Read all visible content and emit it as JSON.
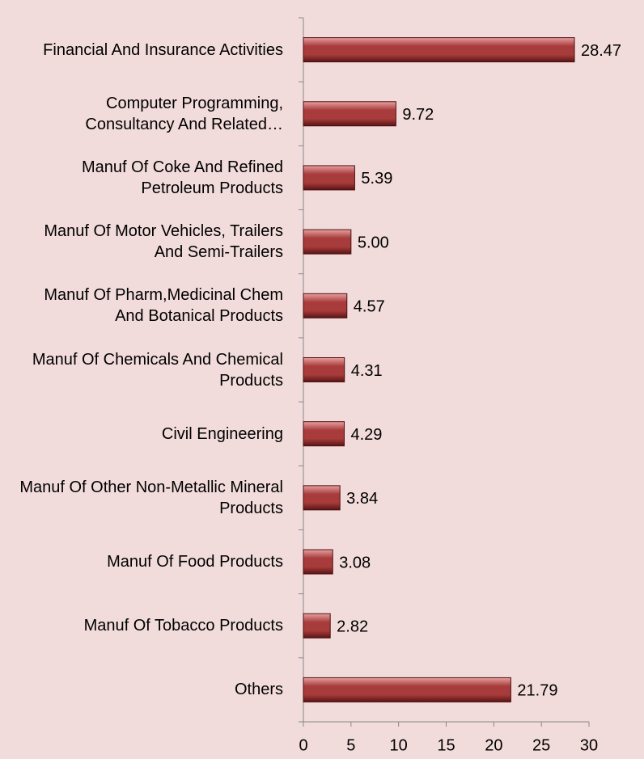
{
  "chart_data": {
    "type": "bar",
    "orientation": "horizontal",
    "categories": [
      "Financial And Insurance Activities",
      "Computer Programming, Consultancy And Related…",
      "Manuf Of Coke And Refined Petroleum Products",
      "Manuf Of Motor Vehicles, Trailers And Semi-Trailers",
      "Manuf Of Pharm,Medicinal Chem And Botanical Products",
      "Manuf Of Chemicals And Chemical Products",
      "Civil Engineering",
      "Manuf Of Other Non-Metallic Mineral Products",
      "Manuf Of Food Products",
      "Manuf Of Tobacco Products",
      "Others"
    ],
    "values": [
      28.47,
      9.72,
      5.39,
      5.0,
      4.57,
      4.31,
      4.29,
      3.84,
      3.08,
      2.82,
      21.79
    ],
    "value_labels": [
      "28.47",
      "9.72",
      "5.39",
      "5.00",
      "4.57",
      "4.31",
      "4.29",
      "3.84",
      "3.08",
      "2.82",
      "21.79"
    ],
    "color": "#a83c3c",
    "xlim": [
      0,
      30
    ],
    "xticks": [
      0,
      5,
      10,
      15,
      20,
      25,
      30
    ],
    "grid": false
  }
}
